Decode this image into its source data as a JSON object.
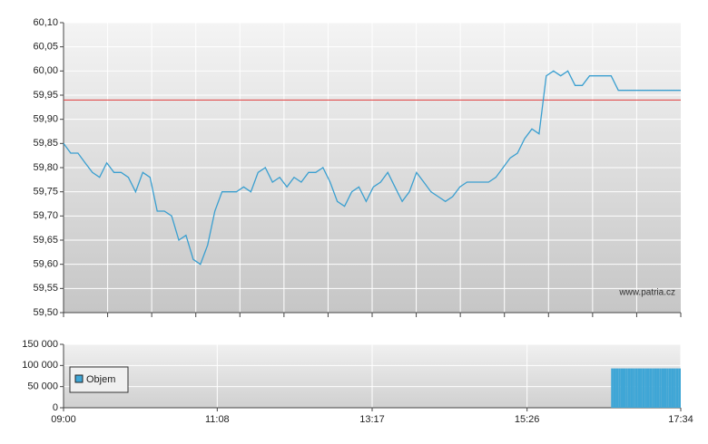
{
  "chart_data": [
    {
      "type": "line",
      "x": [
        "09:00",
        "09:06",
        "09:12",
        "09:18",
        "09:24",
        "09:30",
        "09:36",
        "09:42",
        "09:48",
        "09:54",
        "10:00",
        "10:06",
        "10:12",
        "10:18",
        "10:24",
        "10:30",
        "10:36",
        "10:42",
        "10:48",
        "10:54",
        "11:00",
        "11:06",
        "11:12",
        "11:18",
        "11:24",
        "11:30",
        "11:36",
        "11:42",
        "11:48",
        "11:54",
        "12:00",
        "12:06",
        "12:12",
        "12:18",
        "12:24",
        "12:30",
        "12:36",
        "12:42",
        "12:48",
        "12:54",
        "13:00",
        "13:06",
        "13:12",
        "13:18",
        "13:24",
        "13:30",
        "13:36",
        "13:42",
        "13:48",
        "13:54",
        "14:00",
        "14:06",
        "14:12",
        "14:18",
        "14:24",
        "14:30",
        "14:36",
        "14:42",
        "14:48",
        "14:54",
        "15:00",
        "15:06",
        "15:12",
        "15:18",
        "15:24",
        "15:30",
        "15:36",
        "15:42",
        "15:48",
        "15:54",
        "16:00",
        "16:06",
        "16:12",
        "16:18",
        "16:24",
        "16:30",
        "16:36",
        "16:42",
        "17:34"
      ],
      "series": [
        {
          "color": "#3a9fd0",
          "values": [
            59.85,
            59.83,
            59.83,
            59.81,
            59.79,
            59.78,
            59.81,
            59.79,
            59.79,
            59.78,
            59.75,
            59.79,
            59.78,
            59.71,
            59.71,
            59.7,
            59.65,
            59.66,
            59.61,
            59.6,
            59.64,
            59.71,
            59.75,
            59.75,
            59.75,
            59.76,
            59.75,
            59.79,
            59.8,
            59.77,
            59.78,
            59.76,
            59.78,
            59.77,
            59.79,
            59.79,
            59.8,
            59.77,
            59.73,
            59.72,
            59.75,
            59.76,
            59.73,
            59.76,
            59.77,
            59.79,
            59.76,
            59.73,
            59.75,
            59.79,
            59.77,
            59.75,
            59.74,
            59.73,
            59.74,
            59.76,
            59.77,
            59.77,
            59.77,
            59.77,
            59.78,
            59.8,
            59.82,
            59.83,
            59.86,
            59.88,
            59.87,
            59.99,
            60.0,
            59.99,
            60.0,
            59.97,
            59.97,
            59.99,
            59.99,
            59.99,
            59.99,
            59.96,
            59.96
          ]
        }
      ],
      "xlim": [
        "09:00",
        "17:34"
      ],
      "ylim": [
        59.5,
        60.1
      ],
      "yticks": [
        {
          "value": 59.5,
          "label": "59,50"
        },
        {
          "value": 59.55,
          "label": "59,55"
        },
        {
          "value": 59.6,
          "label": "59,60"
        },
        {
          "value": 59.65,
          "label": "59,65"
        },
        {
          "value": 59.7,
          "label": "59,70"
        },
        {
          "value": 59.75,
          "label": "59,75"
        },
        {
          "value": 59.8,
          "label": "59,80"
        },
        {
          "value": 59.85,
          "label": "59,85"
        },
        {
          "value": 59.9,
          "label": "59,90"
        },
        {
          "value": 59.95,
          "label": "59,95"
        },
        {
          "value": 60,
          "label": "60,00"
        },
        {
          "value": 60.05,
          "label": "60,05"
        },
        {
          "value": 60.1,
          "label": "60,10"
        }
      ],
      "reference_line": {
        "value": 59.94,
        "color": "#e03a3a"
      },
      "annotation": "www.patria.cz",
      "grid": true
    },
    {
      "type": "bar",
      "x": [
        "16:38",
        "16:40",
        "16:42",
        "16:44",
        "16:46",
        "16:48",
        "16:50",
        "16:52",
        "16:54",
        "16:56",
        "16:58",
        "17:00",
        "17:02",
        "17:04",
        "17:06",
        "17:08",
        "17:10",
        "17:12",
        "17:14",
        "17:16",
        "17:18",
        "17:20",
        "17:22",
        "17:24",
        "17:26",
        "17:28",
        "17:30",
        "17:32",
        "17:34"
      ],
      "series": [
        {
          "name": "Objem",
          "color": "#3fa6d6",
          "values": [
            93000,
            93000,
            93000,
            93000,
            93000,
            93000,
            93000,
            93000,
            93000,
            93000,
            93000,
            93000,
            93000,
            93000,
            93000,
            93000,
            93000,
            93000,
            93000,
            93000,
            93000,
            93000,
            93000,
            93000,
            93000,
            93000,
            93000,
            93000,
            93000
          ]
        }
      ],
      "xlim": [
        "09:00",
        "17:34"
      ],
      "xticks": [
        "09:00",
        "11:08",
        "13:17",
        "15:26",
        "17:34"
      ],
      "ylim": [
        0,
        150000
      ],
      "yticks": [
        {
          "value": 0,
          "label": "0"
        },
        {
          "value": 50000,
          "label": "50 000"
        },
        {
          "value": 100000,
          "label": "100 000"
        },
        {
          "value": 150000,
          "label": "150 000"
        }
      ],
      "grid": true
    }
  ]
}
